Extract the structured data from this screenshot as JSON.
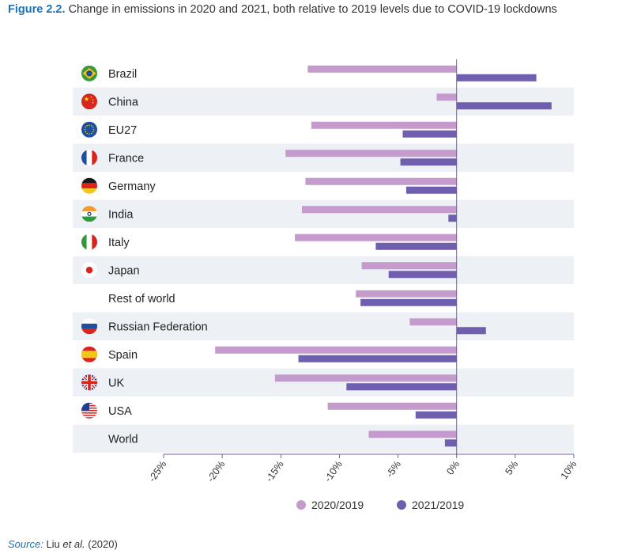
{
  "figure": {
    "label": "Figure 2.2.",
    "title": "Change in emissions in 2020 and 2021, both relative to 2019 levels due to COVID-19 lockdowns"
  },
  "source": {
    "label": "Source:",
    "author": "Liu",
    "etal": "et al.",
    "year": "(2020)"
  },
  "colors": {
    "series_2020": "#c49bcc",
    "series_2021": "#6f5fae",
    "band": "#edf1f5",
    "axis": "#6f5fae"
  },
  "chart_data": {
    "type": "bar",
    "orientation": "horizontal",
    "title": "Change in emissions in 2020 and 2021, both relative to 2019 levels due to COVID-19 lockdowns",
    "xlabel": "",
    "ylabel": "",
    "xlim": [
      -25,
      10
    ],
    "xticks": [
      -25,
      -20,
      -15,
      -10,
      -5,
      0,
      5,
      10
    ],
    "xtick_labels": [
      "-25%",
      "-20%",
      "-15%",
      "-10%",
      "-5%",
      "0%",
      "5%",
      "10%"
    ],
    "legend_position": "bottom",
    "categories": [
      {
        "name": "Brazil",
        "flag": "brazil-flag"
      },
      {
        "name": "China",
        "flag": "china-flag"
      },
      {
        "name": "EU27",
        "flag": "eu-flag"
      },
      {
        "name": "France",
        "flag": "france-flag"
      },
      {
        "name": "Germany",
        "flag": "germany-flag"
      },
      {
        "name": "India",
        "flag": "india-flag"
      },
      {
        "name": "Italy",
        "flag": "italy-flag"
      },
      {
        "name": "Japan",
        "flag": "japan-flag"
      },
      {
        "name": "Rest of world",
        "flag": ""
      },
      {
        "name": "Russian Federation",
        "flag": "russia-flag"
      },
      {
        "name": "Spain",
        "flag": "spain-flag"
      },
      {
        "name": "UK",
        "flag": "uk-flag"
      },
      {
        "name": "USA",
        "flag": "usa-flag"
      },
      {
        "name": "World",
        "flag": ""
      }
    ],
    "series": [
      {
        "name": "2020/2019",
        "values": [
          -12.7,
          -1.7,
          -12.4,
          -14.6,
          -12.9,
          -13.2,
          -13.8,
          -8.1,
          -8.6,
          -4.0,
          -20.6,
          -15.5,
          -11.0,
          -7.5
        ]
      },
      {
        "name": "2021/2019",
        "values": [
          6.8,
          8.1,
          -4.6,
          -4.8,
          -4.3,
          -0.7,
          -6.9,
          -5.8,
          -8.2,
          2.5,
          -13.5,
          -9.4,
          -3.5,
          -1.0
        ]
      }
    ]
  }
}
